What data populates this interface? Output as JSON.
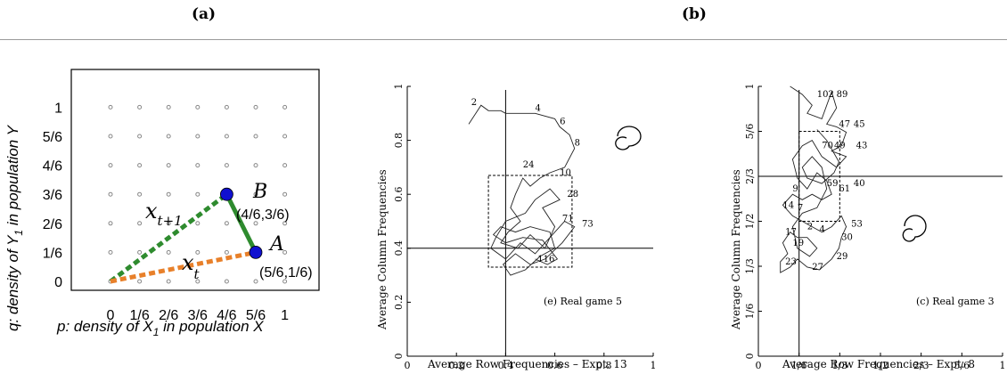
{
  "captions": {
    "a": "(a)",
    "b": "(b)"
  },
  "panel_a": {
    "xlabel": "p: density of X",
    "xlabel_sub": "1",
    "xlabel_tail": " in population X",
    "ylabel": "q: density of Y",
    "ylabel_sub": "1",
    "ylabel_tail": " in population Y",
    "x_ticks": [
      "0",
      "1/6",
      "2/6",
      "3/6",
      "4/6",
      "5/6",
      "1"
    ],
    "y_ticks": [
      "0",
      "1/6",
      "2/6",
      "3/6",
      "4/6",
      "5/6",
      "1"
    ],
    "point_B": {
      "name": "B",
      "coord_label": "(4/6,3/6)",
      "p": 0.6667,
      "q": 0.5
    },
    "point_A": {
      "name": "A",
      "coord_label": "(5/6,1/6)",
      "p": 0.8333,
      "q": 0.1667
    },
    "origin": {
      "p": 0,
      "q": 0
    },
    "vector_xt1": {
      "base": "x",
      "sub": "t+1"
    },
    "vector_xt": {
      "base": "x",
      "sub": "t"
    },
    "colors": {
      "green": "#2e8b2e",
      "orange": "#e8802a",
      "node": "#1010d0",
      "grid_dot": "#888888"
    }
  },
  "panel_e": {
    "title": "(e) Real game 5",
    "xlabel": "Average Row Frequencies – Expt. 13",
    "ylabel": "Average Column Frequencies",
    "x_ticks": [
      "0",
      "0.2",
      "0.4",
      "0.6",
      "0.8",
      "1"
    ],
    "y_ticks": [
      "0",
      "0.2",
      "0.4",
      "0.6",
      "0.8",
      "1"
    ],
    "equilibrium": {
      "x": 0.4,
      "y": 0.4
    },
    "box": {
      "x0": 0.33,
      "x1": 0.67,
      "y0": 0.33,
      "y1": 0.67
    },
    "annotations": [
      {
        "text": "2",
        "x": 0.26,
        "y": 0.93
      },
      {
        "text": "4",
        "x": 0.52,
        "y": 0.91
      },
      {
        "text": "6",
        "x": 0.62,
        "y": 0.86
      },
      {
        "text": "8",
        "x": 0.68,
        "y": 0.78
      },
      {
        "text": "24",
        "x": 0.47,
        "y": 0.7
      },
      {
        "text": "10",
        "x": 0.62,
        "y": 0.67
      },
      {
        "text": "28",
        "x": 0.65,
        "y": 0.59
      },
      {
        "text": "71",
        "x": 0.63,
        "y": 0.5
      },
      {
        "text": "73",
        "x": 0.71,
        "y": 0.48
      },
      {
        "text": "116",
        "x": 0.53,
        "y": 0.35
      }
    ]
  },
  "panel_c": {
    "title": "(c) Real game 3",
    "xlabel": "Average Row Frequencies – Expt. 8",
    "ylabel": "Average Column Frequencies",
    "x_ticks": [
      "0",
      "1/6",
      "1/3",
      "1/2",
      "2/3",
      "5/6",
      "1"
    ],
    "y_ticks": [
      "0",
      "1/6",
      "1/3",
      "1/2",
      "2/3",
      "5/6",
      "1"
    ],
    "equilibrium": {
      "x": 0.1667,
      "y": 0.6667
    },
    "box": {
      "x0": 0.1667,
      "x1": 0.3333,
      "y0": 0.5,
      "y1": 0.8333
    },
    "annotations": [
      {
        "text": "102",
        "x": 0.24,
        "y": 0.96
      },
      {
        "text": "89",
        "x": 0.32,
        "y": 0.96
      },
      {
        "text": "47",
        "x": 0.33,
        "y": 0.85
      },
      {
        "text": "45",
        "x": 0.39,
        "y": 0.85
      },
      {
        "text": "70",
        "x": 0.26,
        "y": 0.77
      },
      {
        "text": "49",
        "x": 0.31,
        "y": 0.77
      },
      {
        "text": "43",
        "x": 0.4,
        "y": 0.77
      },
      {
        "text": "40",
        "x": 0.39,
        "y": 0.63
      },
      {
        "text": "59",
        "x": 0.28,
        "y": 0.63
      },
      {
        "text": "61",
        "x": 0.33,
        "y": 0.61
      },
      {
        "text": "9",
        "x": 0.14,
        "y": 0.61
      },
      {
        "text": "14",
        "x": 0.1,
        "y": 0.55
      },
      {
        "text": "7",
        "x": 0.16,
        "y": 0.54
      },
      {
        "text": "2",
        "x": 0.2,
        "y": 0.47
      },
      {
        "text": "4",
        "x": 0.25,
        "y": 0.46
      },
      {
        "text": "53",
        "x": 0.38,
        "y": 0.48
      },
      {
        "text": "17",
        "x": 0.11,
        "y": 0.45
      },
      {
        "text": "19",
        "x": 0.14,
        "y": 0.41
      },
      {
        "text": "30",
        "x": 0.34,
        "y": 0.43
      },
      {
        "text": "29",
        "x": 0.32,
        "y": 0.36
      },
      {
        "text": "23",
        "x": 0.11,
        "y": 0.34
      },
      {
        "text": "27",
        "x": 0.22,
        "y": 0.32
      }
    ]
  }
}
